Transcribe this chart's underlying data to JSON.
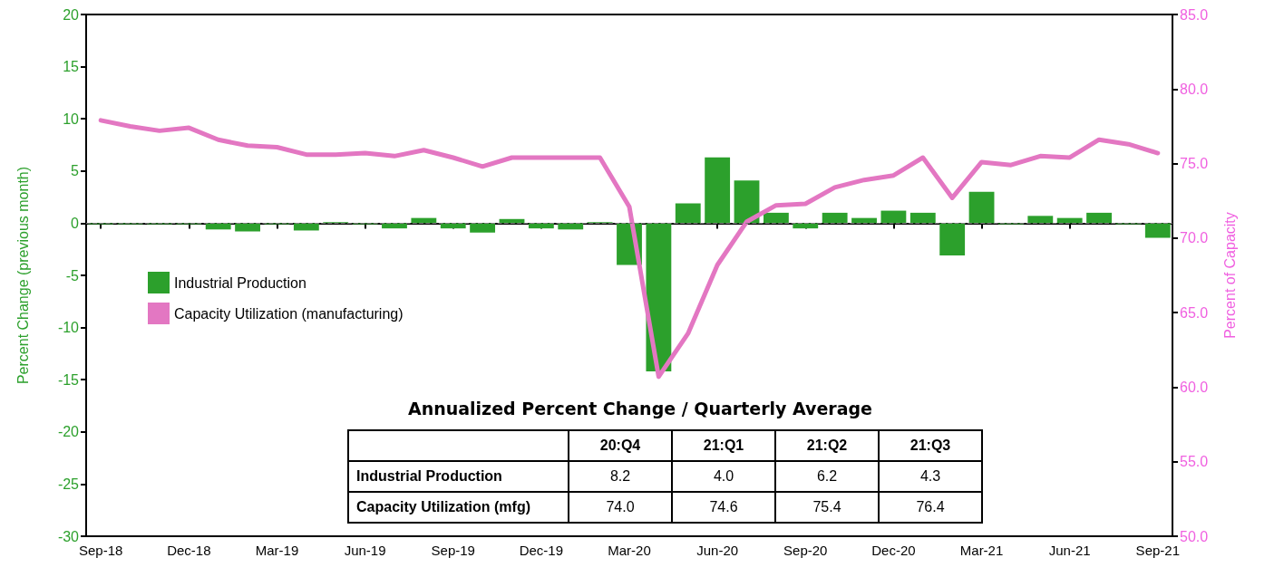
{
  "chart_data": {
    "type": "bar",
    "ylabel": "Percent Change (previous month)",
    "y2label": "Percent of Capacity",
    "categories": [
      "Sep-18",
      null,
      null,
      "Dec-18",
      null,
      null,
      "Mar-19",
      null,
      null,
      "Jun-19",
      null,
      null,
      "Sep-19",
      null,
      null,
      "Dec-19",
      null,
      null,
      "Mar-20",
      null,
      null,
      "Jun-20",
      null,
      null,
      "Sep-20",
      null,
      null,
      "Dec-20",
      null,
      null,
      "Mar-21",
      null,
      null,
      "Jun-21",
      null,
      null,
      "Sep-21"
    ],
    "series": [
      {
        "name": "Industrial Production",
        "color": "#2ca02c",
        "values": [
          -0.1,
          -0.1,
          -0.1,
          -0.1,
          -0.6,
          -0.8,
          -0.1,
          -0.7,
          0.1,
          -0.1,
          -0.5,
          0.5,
          -0.5,
          -0.9,
          0.4,
          -0.5,
          -0.6,
          0.1,
          -4.0,
          -14.2,
          1.9,
          6.3,
          4.1,
          1.0,
          -0.5,
          1.0,
          0.5,
          1.2,
          1.0,
          -3.1,
          3.0,
          -0.1,
          0.7,
          0.5,
          1.0,
          -0.1,
          -1.4
        ]
      },
      {
        "name": "Capacity Utilization (manufacturing)",
        "type": "line",
        "axis": "y2",
        "color": "#e377c2",
        "values": [
          77.9,
          77.5,
          77.2,
          77.4,
          76.6,
          76.2,
          76.1,
          75.6,
          75.6,
          75.7,
          75.5,
          75.9,
          75.4,
          74.8,
          75.4,
          75.4,
          75.4,
          75.4,
          72.1,
          60.7,
          63.6,
          68.2,
          71.1,
          72.2,
          72.3,
          73.4,
          73.9,
          74.2,
          75.4,
          72.7,
          75.1,
          74.9,
          75.5,
          75.4,
          76.6,
          76.3,
          75.7
        ]
      }
    ],
    "ylim": [
      -30,
      20
    ],
    "yticks": [
      -30,
      -25,
      -20,
      -15,
      -10,
      -5,
      0,
      5,
      10,
      15,
      20
    ],
    "y2lim": [
      50,
      85
    ],
    "y2ticks": [
      {
        "value": 50,
        "label": "50.0"
      },
      {
        "value": 55,
        "label": "55.0"
      },
      {
        "value": 60,
        "label": "60.0"
      },
      {
        "value": 65,
        "label": "65.0"
      },
      {
        "value": 70,
        "label": "70.0"
      },
      {
        "value": 75,
        "label": "75.0"
      },
      {
        "value": 80,
        "label": "80.0"
      },
      {
        "value": 85,
        "label": "85.0"
      }
    ],
    "ref_lines": [
      {
        "axis": "y",
        "value": 0,
        "color": "#808080",
        "line_style": "dashed"
      }
    ],
    "legend": "left",
    "grid": false,
    "marker": "none",
    "line_style": "solid",
    "annotations": [
      "Annualized Percent Change / Quarterly Average",
      "20:Q4",
      "21:Q1",
      "21:Q2",
      "21:Q3",
      "Industrial Production",
      "8.2",
      "4.0",
      "6.2",
      "4.3",
      "Capacity Utilization (mfg)",
      "74.0",
      "74.6",
      "75.4",
      "76.4"
    ]
  }
}
